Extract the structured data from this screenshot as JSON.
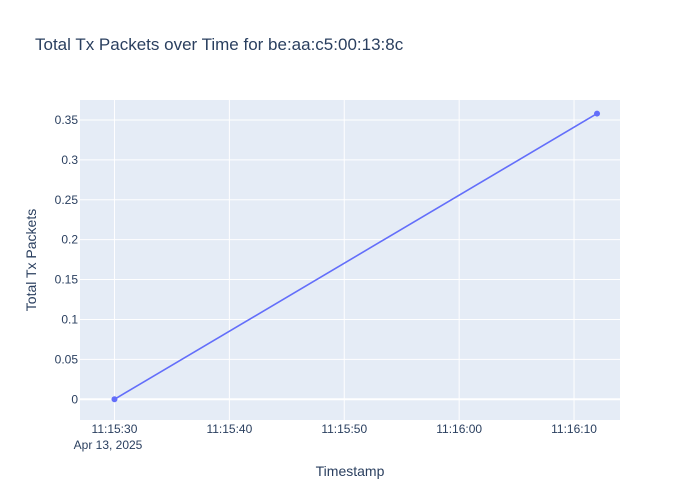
{
  "chart_data": {
    "type": "line",
    "title": "Total Tx Packets over Time for be:aa:c5:00:13:8c",
    "xlabel": "Timestamp",
    "ylabel": "Total Tx Packets",
    "x_date_label": "Apr 13, 2025",
    "x_ticks": [
      {
        "t": "11:15:30",
        "label": "11:15:30"
      },
      {
        "t": "11:15:40",
        "label": "11:15:40"
      },
      {
        "t": "11:15:50",
        "label": "11:15:50"
      },
      {
        "t": "11:16:00",
        "label": "11:16:00"
      },
      {
        "t": "11:16:10",
        "label": "11:16:10"
      }
    ],
    "y_ticks": [
      {
        "value": 0,
        "label": "0"
      },
      {
        "value": 0.05,
        "label": "0.05"
      },
      {
        "value": 0.1,
        "label": "0.1"
      },
      {
        "value": 0.15,
        "label": "0.15"
      },
      {
        "value": 0.2,
        "label": "0.2"
      },
      {
        "value": 0.25,
        "label": "0.25"
      },
      {
        "value": 0.3,
        "label": "0.3"
      },
      {
        "value": 0.35,
        "label": "0.35"
      }
    ],
    "xlim": [
      "11:15:27",
      "11:16:14"
    ],
    "ylim": [
      -0.026,
      0.375
    ],
    "grid": true,
    "colors": {
      "plot_bg": "#e5ecf6",
      "grid": "#ffffff",
      "line": "#636efa",
      "text": "#2a3f5f"
    },
    "series": [
      {
        "points": [
          {
            "x": "11:15:30",
            "y": 0
          },
          {
            "x": "11:16:12",
            "y": 0.358
          }
        ]
      }
    ]
  }
}
